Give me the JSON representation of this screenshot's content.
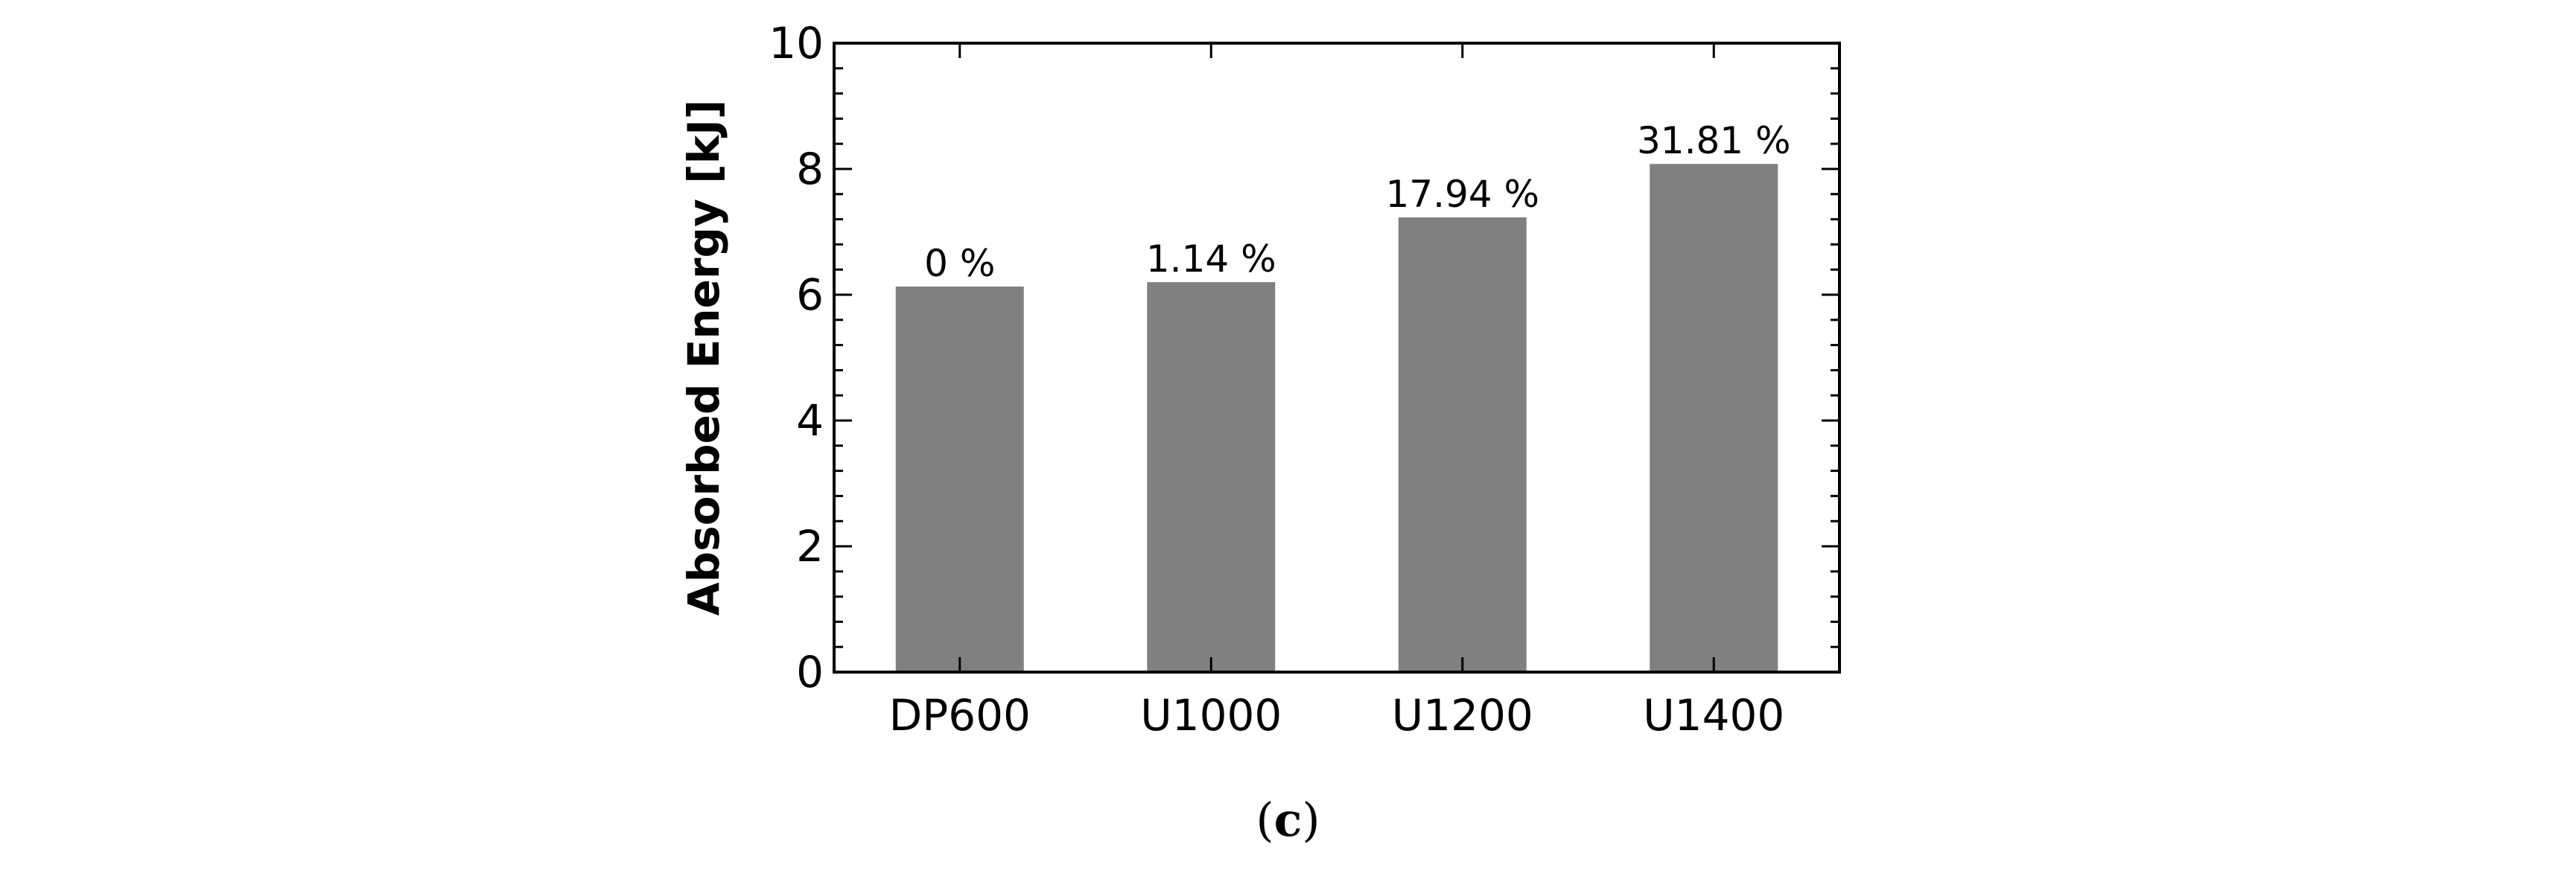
{
  "chart_data": {
    "type": "bar",
    "categories": [
      "DP600",
      "U1000",
      "U1200",
      "U1400"
    ],
    "values": [
      6.13,
      6.2,
      7.23,
      8.08
    ],
    "data_labels": [
      "0 %",
      "1.14 %",
      "17.94 %",
      "31.81 %"
    ],
    "ylabel": "Absorbed Energy [kJ]",
    "xlabel": "",
    "ylim": [
      0,
      10
    ],
    "y_ticks": [
      0,
      2,
      4,
      6,
      8,
      10
    ],
    "bar_color": "#808080",
    "grid": false
  },
  "caption": {
    "open": "(",
    "letter": "c",
    "close": ")"
  }
}
